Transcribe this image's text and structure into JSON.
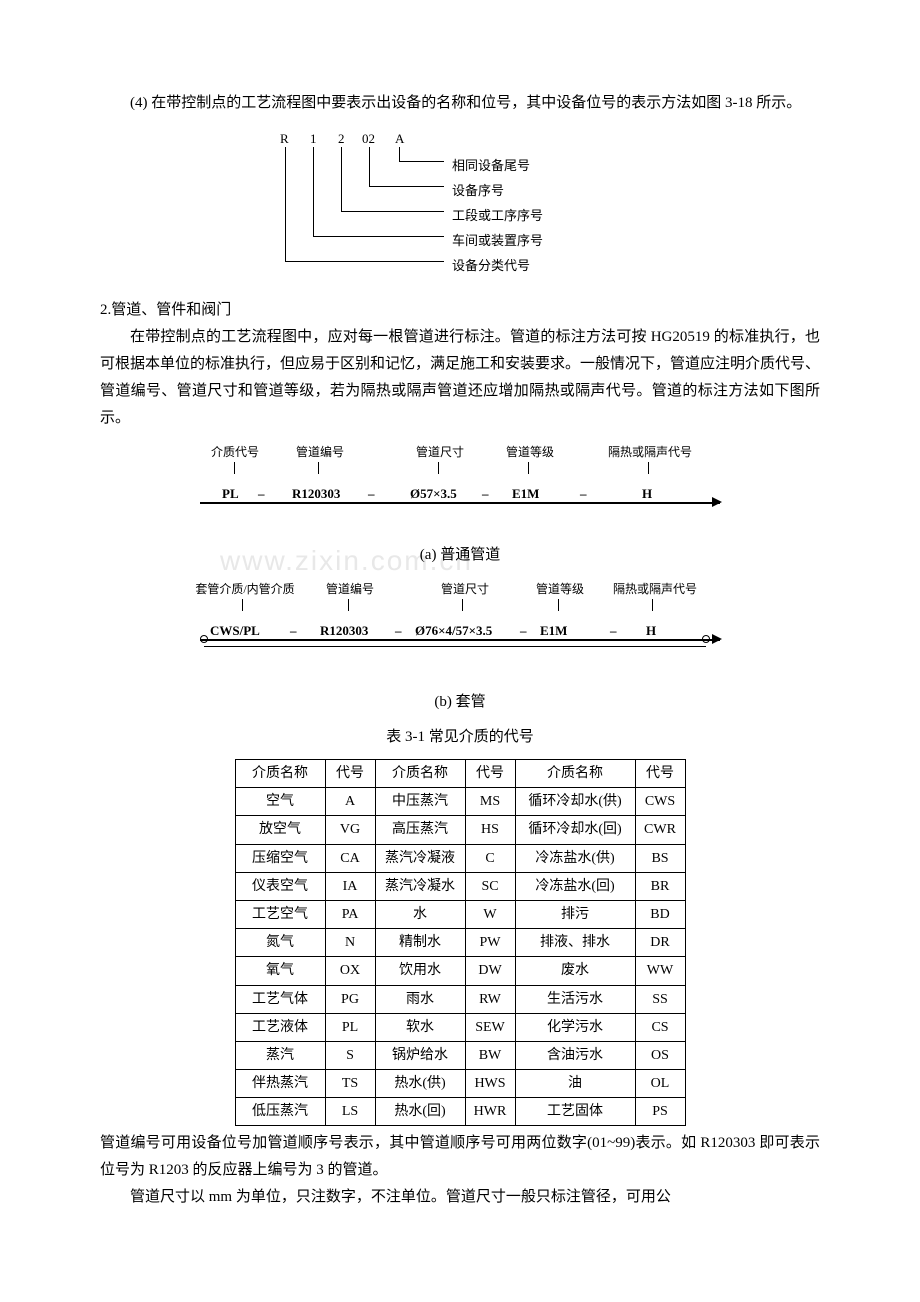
{
  "p1": "(4)    在带控制点的工艺流程图中要表示出设备的名称和位号，其中设备位号的表示方法如图 3-18 所示。",
  "equip": {
    "parts": [
      "R",
      "1",
      "2",
      "02",
      "A"
    ],
    "labels": [
      "相同设备尾号",
      "设备序号",
      "工段或工序序号",
      "车间或装置序号",
      "设备分类代号"
    ]
  },
  "section2": "2.管道、管件和阀门",
  "p2": "在带控制点的工艺流程图中，应对每一根管道进行标注。管道的标注方法可按 HG20519 的标准执行，也可根据本单位的标准执行，但应易于区别和记忆，满足施工和安装要求。一般情况下，管道应注明介质代号、管道编号、管道尺寸和管道等级，若为隔热或隔声管道还应增加隔热或隔声代号。管道的标注方法如下图所示。",
  "pipe_a": {
    "labels": [
      "介质代号",
      "管道编号",
      "管道尺寸",
      "管道等级",
      "隔热或隔声代号"
    ],
    "codes": [
      "PL",
      "R120303",
      "Ø57×3.5",
      "E1M",
      "H"
    ]
  },
  "caption_a": "(a)  普通管道",
  "watermark": "www.zixin.com.cn",
  "pipe_b": {
    "labels": [
      "套管介质/内管介质",
      "管道编号",
      "管道尺寸",
      "管道等级",
      "隔热或隔声代号"
    ],
    "codes": [
      "CWS/PL",
      "R120303",
      "Ø76×4/57×3.5",
      "E1M",
      "H"
    ]
  },
  "caption_b": "(b)  套管",
  "table_title": "表 3-1    常见介质的代号",
  "table_headers": [
    "介质名称",
    "代号",
    "介质名称",
    "代号",
    "介质名称",
    "代号"
  ],
  "table_rows": [
    [
      "空气",
      "A",
      "中压蒸汽",
      "MS",
      "循环冷却水(供)",
      "CWS"
    ],
    [
      "放空气",
      "VG",
      "高压蒸汽",
      "HS",
      "循环冷却水(回)",
      "CWR"
    ],
    [
      "压缩空气",
      "CA",
      "蒸汽冷凝液",
      "C",
      "冷冻盐水(供)",
      "BS"
    ],
    [
      "仪表空气",
      "IA",
      "蒸汽冷凝水",
      "SC",
      "冷冻盐水(回)",
      "BR"
    ],
    [
      "工艺空气",
      "PA",
      "水",
      "W",
      "排污",
      "BD"
    ],
    [
      "氮气",
      "N",
      "精制水",
      "PW",
      "排液、排水",
      "DR"
    ],
    [
      "氧气",
      "OX",
      "饮用水",
      "DW",
      "废水",
      "WW"
    ],
    [
      "工艺气体",
      "PG",
      "雨水",
      "RW",
      "生活污水",
      "SS"
    ],
    [
      "工艺液体",
      "PL",
      "软水",
      "SEW",
      "化学污水",
      "CS"
    ],
    [
      "蒸汽",
      "S",
      "锅炉给水",
      "BW",
      "含油污水",
      "OS"
    ],
    [
      "伴热蒸汽",
      "TS",
      "热水(供)",
      "HWS",
      "油",
      "OL"
    ],
    [
      "低压蒸汽",
      "LS",
      "热水(回)",
      "HWR",
      "工艺固体",
      "PS"
    ]
  ],
  "p3": "管道编号可用设备位号加管道顺序号表示，其中管道顺序号可用两位数字(01~99)表示。如 R120303 即可表示位号为 R1203 的反应器上编号为 3 的管道。",
  "p4": "管道尺寸以 mm 为单位，只注数字，不注单位。管道尺寸一般只标注管径，可用公"
}
